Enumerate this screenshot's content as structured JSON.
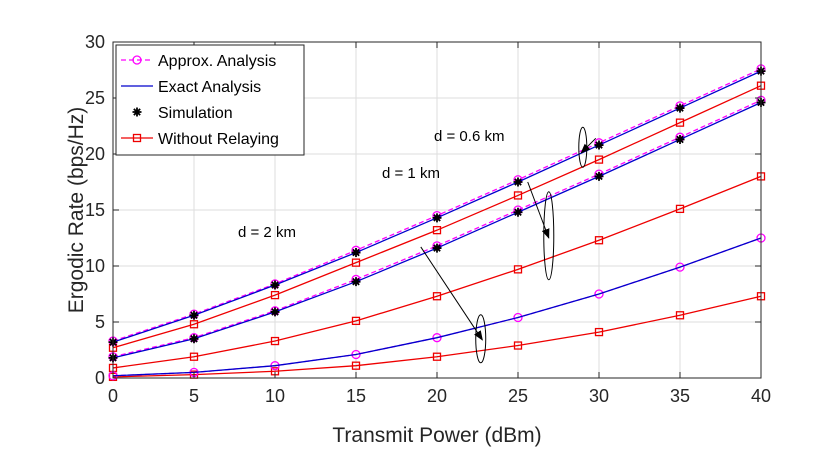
{
  "chart_data": {
    "type": "line",
    "title": "",
    "xlabel": "Transmit Power (dBm)",
    "ylabel": "Ergodic Rate (bps/Hz)",
    "xlim": [
      0,
      40
    ],
    "ylim": [
      0,
      30
    ],
    "xticks": [
      0,
      5,
      10,
      15,
      20,
      25,
      30,
      35,
      40
    ],
    "yticks": [
      0,
      5,
      10,
      15,
      20,
      25,
      30
    ],
    "grid": true,
    "legend_position": "top-left",
    "x": [
      0,
      5,
      10,
      15,
      20,
      25,
      30,
      35,
      40
    ],
    "series": [
      {
        "name": "Approx. Analysis",
        "group": "d = 0.6 km",
        "color": "#ff00ff",
        "style": "dashed",
        "marker": "circle",
        "values": [
          3.3,
          5.7,
          8.4,
          11.4,
          14.5,
          17.7,
          21.0,
          24.3,
          27.6
        ]
      },
      {
        "name": "Exact Analysis",
        "group": "d = 0.6 km",
        "color": "#0000cc",
        "style": "solid",
        "marker": "none",
        "values": [
          3.2,
          5.6,
          8.3,
          11.2,
          14.3,
          17.5,
          20.8,
          24.1,
          27.4
        ]
      },
      {
        "name": "Simulation",
        "group": "d = 0.6 km",
        "color": "#000000",
        "style": "none",
        "marker": "star",
        "values": [
          3.2,
          5.6,
          8.3,
          11.2,
          14.3,
          17.5,
          20.8,
          24.1,
          27.4
        ]
      },
      {
        "name": "Without Relaying",
        "group": "d = 0.6 km",
        "color": "#ee0000",
        "style": "solid",
        "marker": "square",
        "values": [
          2.7,
          4.8,
          7.4,
          10.3,
          13.2,
          16.3,
          19.5,
          22.8,
          26.1
        ]
      },
      {
        "name": "Approx. Analysis",
        "group": "d = 1 km",
        "color": "#ff00ff",
        "style": "dashed",
        "marker": "circle",
        "values": [
          1.9,
          3.6,
          6.0,
          8.8,
          11.8,
          15.0,
          18.2,
          21.5,
          24.8
        ]
      },
      {
        "name": "Exact Analysis",
        "group": "d = 1 km",
        "color": "#0000cc",
        "style": "solid",
        "marker": "none",
        "values": [
          1.8,
          3.5,
          5.9,
          8.6,
          11.6,
          14.8,
          18.0,
          21.3,
          24.6
        ]
      },
      {
        "name": "Simulation",
        "group": "d = 1 km",
        "color": "#000000",
        "style": "none",
        "marker": "star",
        "values": [
          1.8,
          3.5,
          5.9,
          8.6,
          11.6,
          14.8,
          18.0,
          21.3,
          24.6
        ]
      },
      {
        "name": "Without Relaying",
        "group": "d = 1 km",
        "color": "#ee0000",
        "style": "solid",
        "marker": "square",
        "values": [
          0.9,
          1.9,
          3.3,
          5.1,
          7.3,
          9.7,
          12.3,
          15.1,
          18.0
        ]
      },
      {
        "name": "Approx. Analysis",
        "group": "d = 2 km",
        "color": "#ff00ff",
        "style": "dashed",
        "marker": "circle",
        "values": [
          0.2,
          0.5,
          1.1,
          2.1,
          3.6,
          5.4,
          7.5,
          9.9,
          12.5
        ]
      },
      {
        "name": "Exact Analysis",
        "group": "d = 2 km",
        "color": "#0000cc",
        "style": "solid",
        "marker": "none",
        "values": [
          0.2,
          0.5,
          1.1,
          2.1,
          3.6,
          5.4,
          7.5,
          9.9,
          12.5
        ]
      },
      {
        "name": "Without Relaying",
        "group": "d = 2 km",
        "color": "#ee0000",
        "style": "solid",
        "marker": "square",
        "values": [
          0.1,
          0.3,
          0.6,
          1.1,
          1.9,
          2.9,
          4.1,
          5.6,
          7.3
        ]
      }
    ],
    "legend": [
      {
        "label": "Approx. Analysis",
        "color": "#ff00ff",
        "style": "dashed",
        "marker": "circle"
      },
      {
        "label": "Exact Analysis",
        "color": "#0000cc",
        "style": "solid",
        "marker": "none"
      },
      {
        "label": "Simulation",
        "color": "#000000",
        "style": "none",
        "marker": "star"
      },
      {
        "label": "Without Relaying",
        "color": "#ee0000",
        "style": "solid",
        "marker": "square"
      }
    ],
    "annotations": [
      {
        "text": "d = 0.6 km",
        "arrow_from": [
          29.8,
          21.4
        ],
        "arrow_to": [
          28.9,
          20.1
        ],
        "ellipse_center": [
          29.0,
          20.6
        ]
      },
      {
        "text": "d = 1 km",
        "arrow_from": [
          25.6,
          17.5
        ],
        "arrow_to": [
          26.9,
          12.5
        ],
        "ellipse_center": [
          26.9,
          12.7
        ]
      },
      {
        "text": "d = 2 km",
        "arrow_from": [
          19.0,
          11.7
        ],
        "arrow_to": [
          22.8,
          3.4
        ],
        "ellipse_center": [
          22.7,
          3.5
        ]
      }
    ]
  }
}
